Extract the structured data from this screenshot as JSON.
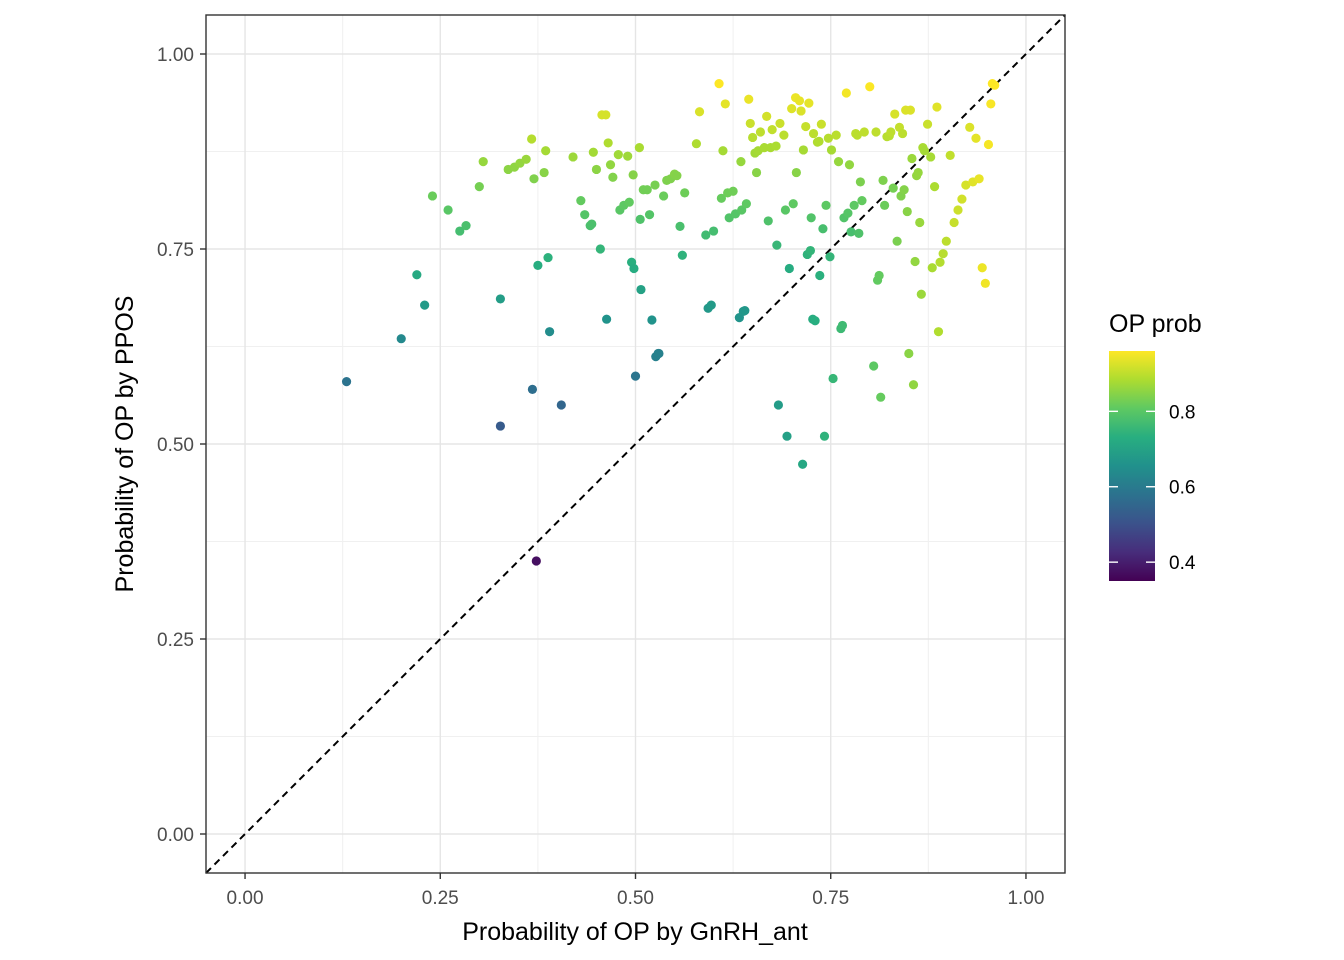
{
  "chart_data": {
    "type": "scatter",
    "title": "",
    "xlabel": "Probability of OP by GnRH_ant",
    "ylabel": "Probability of OP by PPOS",
    "xlim": [
      -0.05,
      1.05
    ],
    "ylim": [
      -0.05,
      1.05
    ],
    "x_ticks": [
      "0.00",
      "0.25",
      "0.50",
      "0.75",
      "1.00"
    ],
    "y_ticks": [
      "0.00",
      "0.25",
      "0.50",
      "0.75",
      "1.00"
    ],
    "grid": true,
    "reference_line": {
      "type": "identity",
      "style": "dashed",
      "color": "#000000"
    },
    "color_legend": {
      "title": "OP prob",
      "palette": "viridis",
      "range": [
        0.35,
        0.96
      ],
      "tick_labels": [
        "0.4",
        "0.6",
        "0.8"
      ],
      "placement": "right"
    },
    "points": [
      [
        0.13,
        0.58
      ],
      [
        0.2,
        0.635
      ],
      [
        0.22,
        0.717
      ],
      [
        0.23,
        0.678
      ],
      [
        0.24,
        0.818
      ],
      [
        0.26,
        0.8
      ],
      [
        0.275,
        0.773
      ],
      [
        0.283,
        0.78
      ],
      [
        0.3,
        0.83
      ],
      [
        0.305,
        0.862
      ],
      [
        0.327,
        0.523
      ],
      [
        0.327,
        0.686
      ],
      [
        0.337,
        0.852
      ],
      [
        0.345,
        0.855
      ],
      [
        0.352,
        0.86
      ],
      [
        0.36,
        0.865
      ],
      [
        0.367,
        0.891
      ],
      [
        0.368,
        0.57
      ],
      [
        0.37,
        0.84
      ],
      [
        0.373,
        0.35
      ],
      [
        0.375,
        0.729
      ],
      [
        0.383,
        0.848
      ],
      [
        0.385,
        0.876
      ],
      [
        0.388,
        0.739
      ],
      [
        0.39,
        0.644
      ],
      [
        0.405,
        0.55
      ],
      [
        0.42,
        0.868
      ],
      [
        0.43,
        0.812
      ],
      [
        0.435,
        0.794
      ],
      [
        0.442,
        0.78
      ],
      [
        0.444,
        0.782
      ],
      [
        0.446,
        0.874
      ],
      [
        0.45,
        0.852
      ],
      [
        0.455,
        0.75
      ],
      [
        0.457,
        0.922
      ],
      [
        0.462,
        0.922
      ],
      [
        0.463,
        0.66
      ],
      [
        0.465,
        0.886
      ],
      [
        0.468,
        0.858
      ],
      [
        0.471,
        0.842
      ],
      [
        0.478,
        0.871
      ],
      [
        0.48,
        0.8
      ],
      [
        0.485,
        0.806
      ],
      [
        0.49,
        0.869
      ],
      [
        0.492,
        0.81
      ],
      [
        0.495,
        0.733
      ],
      [
        0.497,
        0.845
      ],
      [
        0.498,
        0.725
      ],
      [
        0.5,
        0.587
      ],
      [
        0.505,
        0.88
      ],
      [
        0.506,
        0.788
      ],
      [
        0.507,
        0.698
      ],
      [
        0.51,
        0.826
      ],
      [
        0.515,
        0.826
      ],
      [
        0.518,
        0.794
      ],
      [
        0.521,
        0.659
      ],
      [
        0.525,
        0.832
      ],
      [
        0.526,
        0.612
      ],
      [
        0.529,
        0.616
      ],
      [
        0.53,
        0.616
      ],
      [
        0.536,
        0.818
      ],
      [
        0.54,
        0.838
      ],
      [
        0.545,
        0.84
      ],
      [
        0.55,
        0.846
      ],
      [
        0.553,
        0.844
      ],
      [
        0.557,
        0.779
      ],
      [
        0.56,
        0.742
      ],
      [
        0.563,
        0.822
      ],
      [
        0.578,
        0.885
      ],
      [
        0.582,
        0.926
      ],
      [
        0.59,
        0.768
      ],
      [
        0.593,
        0.674
      ],
      [
        0.597,
        0.678
      ],
      [
        0.6,
        0.773
      ],
      [
        0.607,
        0.962
      ],
      [
        0.61,
        0.815
      ],
      [
        0.612,
        0.876
      ],
      [
        0.615,
        0.936
      ],
      [
        0.618,
        0.822
      ],
      [
        0.62,
        0.79
      ],
      [
        0.625,
        0.824
      ],
      [
        0.628,
        0.795
      ],
      [
        0.633,
        0.662
      ],
      [
        0.635,
        0.862
      ],
      [
        0.636,
        0.8
      ],
      [
        0.638,
        0.67
      ],
      [
        0.64,
        0.671
      ],
      [
        0.642,
        0.808
      ],
      [
        0.645,
        0.942
      ],
      [
        0.647,
        0.911
      ],
      [
        0.65,
        0.893
      ],
      [
        0.653,
        0.873
      ],
      [
        0.655,
        0.848
      ],
      [
        0.657,
        0.876
      ],
      [
        0.66,
        0.9
      ],
      [
        0.665,
        0.88
      ],
      [
        0.668,
        0.92
      ],
      [
        0.67,
        0.786
      ],
      [
        0.673,
        0.88
      ],
      [
        0.675,
        0.903
      ],
      [
        0.68,
        0.882
      ],
      [
        0.681,
        0.755
      ],
      [
        0.683,
        0.55
      ],
      [
        0.685,
        0.911
      ],
      [
        0.69,
        0.896
      ],
      [
        0.692,
        0.8
      ],
      [
        0.694,
        0.51
      ],
      [
        0.697,
        0.725
      ],
      [
        0.7,
        0.93
      ],
      [
        0.702,
        0.808
      ],
      [
        0.705,
        0.944
      ],
      [
        0.706,
        0.848
      ],
      [
        0.71,
        0.94
      ],
      [
        0.712,
        0.927
      ],
      [
        0.714,
        0.474
      ],
      [
        0.715,
        0.877
      ],
      [
        0.718,
        0.907
      ],
      [
        0.72,
        0.743
      ],
      [
        0.722,
        0.937
      ],
      [
        0.724,
        0.748
      ],
      [
        0.725,
        0.79
      ],
      [
        0.727,
        0.66
      ],
      [
        0.728,
        0.898
      ],
      [
        0.73,
        0.658
      ],
      [
        0.733,
        0.887
      ],
      [
        0.735,
        0.888
      ],
      [
        0.736,
        0.716
      ],
      [
        0.738,
        0.91
      ],
      [
        0.74,
        0.776
      ],
      [
        0.742,
        0.51
      ],
      [
        0.744,
        0.806
      ],
      [
        0.747,
        0.892
      ],
      [
        0.749,
        0.74
      ],
      [
        0.751,
        0.877
      ],
      [
        0.753,
        0.584
      ],
      [
        0.757,
        0.896
      ],
      [
        0.76,
        0.862
      ],
      [
        0.763,
        0.648
      ],
      [
        0.765,
        0.652
      ],
      [
        0.767,
        0.79
      ],
      [
        0.77,
        0.95
      ],
      [
        0.772,
        0.796
      ],
      [
        0.774,
        0.858
      ],
      [
        0.776,
        0.772
      ],
      [
        0.78,
        0.806
      ],
      [
        0.782,
        0.898
      ],
      [
        0.784,
        0.896
      ],
      [
        0.786,
        0.77
      ],
      [
        0.788,
        0.836
      ],
      [
        0.79,
        0.812
      ],
      [
        0.793,
        0.9
      ],
      [
        0.8,
        0.958
      ],
      [
        0.805,
        0.6
      ],
      [
        0.808,
        0.9
      ],
      [
        0.81,
        0.71
      ],
      [
        0.812,
        0.716
      ],
      [
        0.814,
        0.56
      ],
      [
        0.817,
        0.838
      ],
      [
        0.819,
        0.806
      ],
      [
        0.822,
        0.894
      ],
      [
        0.825,
        0.895
      ],
      [
        0.827,
        0.9
      ],
      [
        0.83,
        0.828
      ],
      [
        0.832,
        0.923
      ],
      [
        0.835,
        0.76
      ],
      [
        0.838,
        0.906
      ],
      [
        0.84,
        0.818
      ],
      [
        0.842,
        0.898
      ],
      [
        0.844,
        0.826
      ],
      [
        0.846,
        0.928
      ],
      [
        0.848,
        0.798
      ],
      [
        0.85,
        0.616
      ],
      [
        0.852,
        0.928
      ],
      [
        0.854,
        0.866
      ],
      [
        0.856,
        0.576
      ],
      [
        0.858,
        0.734
      ],
      [
        0.86,
        0.844
      ],
      [
        0.862,
        0.848
      ],
      [
        0.864,
        0.784
      ],
      [
        0.866,
        0.692
      ],
      [
        0.868,
        0.88
      ],
      [
        0.87,
        0.876
      ],
      [
        0.874,
        0.91
      ],
      [
        0.878,
        0.868
      ],
      [
        0.88,
        0.726
      ],
      [
        0.883,
        0.83
      ],
      [
        0.886,
        0.932
      ],
      [
        0.888,
        0.644
      ],
      [
        0.89,
        0.733
      ],
      [
        0.894,
        0.744
      ],
      [
        0.898,
        0.76
      ],
      [
        0.903,
        0.87
      ],
      [
        0.908,
        0.784
      ],
      [
        0.913,
        0.8
      ],
      [
        0.918,
        0.814
      ],
      [
        0.923,
        0.832
      ],
      [
        0.928,
        0.906
      ],
      [
        0.932,
        0.836
      ],
      [
        0.936,
        0.892
      ],
      [
        0.94,
        0.84
      ],
      [
        0.944,
        0.726
      ],
      [
        0.948,
        0.706
      ],
      [
        0.952,
        0.884
      ],
      [
        0.955,
        0.936
      ],
      [
        0.957,
        0.962
      ],
      [
        0.96,
        0.96
      ]
    ]
  }
}
